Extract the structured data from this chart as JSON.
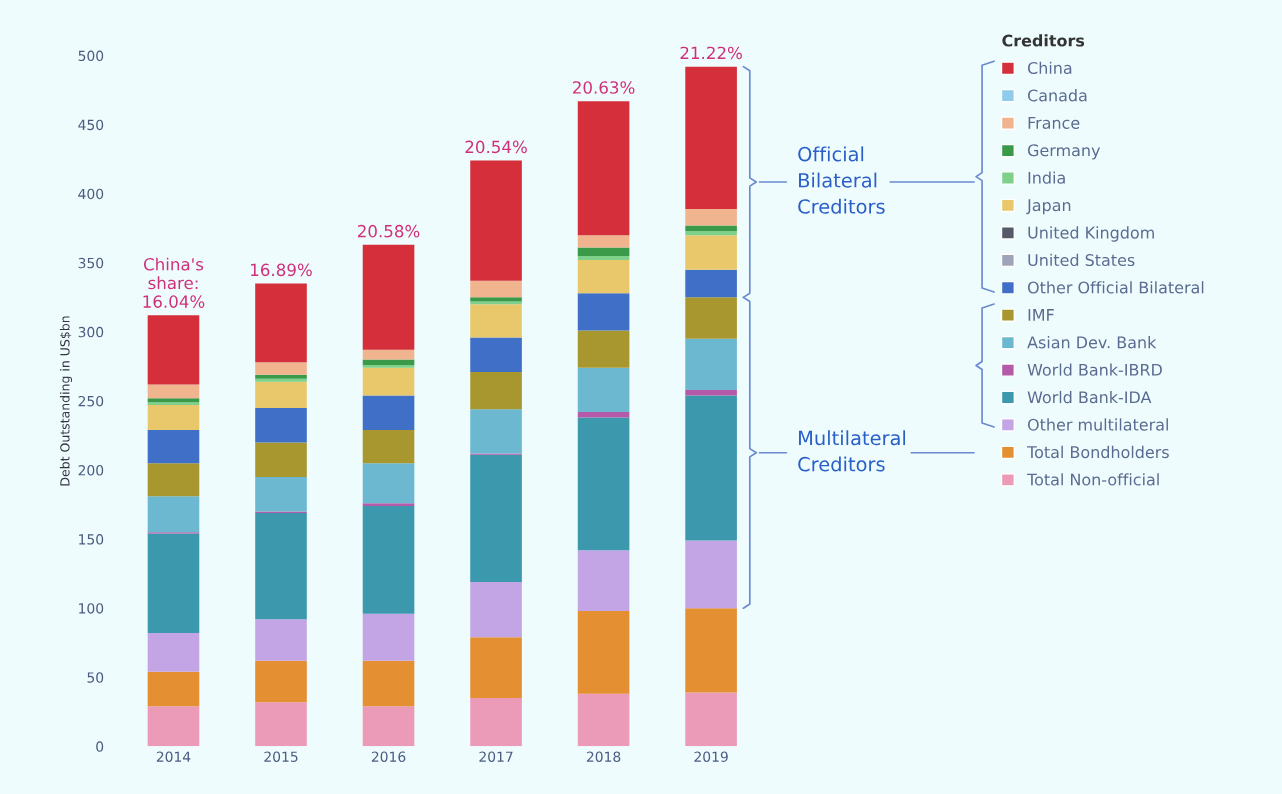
{
  "chart_data": {
    "type": "bar",
    "stacked": true,
    "ylabel": "Debt Outstanding in US$bn",
    "legend_title": "Creditors",
    "legend": "right",
    "categories": [
      "2014",
      "2015",
      "2016",
      "2017",
      "2018",
      "2019"
    ],
    "ylim": [
      0,
      500
    ],
    "yticks": [
      0,
      50,
      100,
      150,
      200,
      250,
      300,
      350,
      400,
      450,
      500
    ],
    "grid": false,
    "series": [
      {
        "name": "Total Non-official",
        "color": "#eb9ab8",
        "values": [
          29,
          32,
          29,
          35,
          38,
          39
        ]
      },
      {
        "name": "Total Bondholders",
        "color": "#e38f32",
        "values": [
          25,
          30,
          33,
          44,
          60,
          61
        ]
      },
      {
        "name": "Other multilateral",
        "color": "#c3a5e6",
        "values": [
          28,
          30,
          34,
          40,
          44,
          49
        ]
      },
      {
        "name": "World Bank-IDA",
        "color": "#3b98ad",
        "values": [
          72,
          77,
          78,
          92,
          96,
          105
        ]
      },
      {
        "name": "World Bank-IBRD",
        "color": "#b45aa8",
        "values": [
          1,
          1,
          2,
          1,
          4,
          4
        ]
      },
      {
        "name": "Asian Dev. Bank",
        "color": "#6bb8d0",
        "values": [
          26,
          25,
          29,
          32,
          32,
          37
        ]
      },
      {
        "name": "IMF",
        "color": "#a8962f",
        "values": [
          24,
          25,
          24,
          27,
          27,
          30
        ]
      },
      {
        "name": "Other Official Bilateral",
        "color": "#3f6fc6",
        "values": [
          24,
          25,
          25,
          25,
          27,
          20
        ]
      },
      {
        "name": "United States",
        "color": "#a0a4b8",
        "values": [
          0,
          0,
          0,
          0,
          0,
          0
        ]
      },
      {
        "name": "United Kingdom",
        "color": "#555a66",
        "values": [
          0,
          0,
          0,
          0,
          0,
          0
        ]
      },
      {
        "name": "Japan",
        "color": "#e8c86a",
        "values": [
          18,
          19,
          20,
          24,
          24,
          25
        ]
      },
      {
        "name": "India",
        "color": "#7fd08a",
        "values": [
          2,
          2,
          2,
          2,
          3,
          3
        ]
      },
      {
        "name": "Germany",
        "color": "#3a9a4a",
        "values": [
          3,
          3,
          4,
          3,
          6,
          4
        ]
      },
      {
        "name": "France",
        "color": "#f0b48f",
        "values": [
          10,
          9,
          7,
          12,
          9,
          12
        ]
      },
      {
        "name": "Canada",
        "color": "#8fcbeb",
        "values": [
          0,
          0,
          0,
          0,
          0,
          0
        ]
      },
      {
        "name": "China",
        "color": "#d42f3a",
        "values": [
          50,
          57,
          76,
          87,
          97,
          103
        ]
      }
    ],
    "annotations": [
      {
        "text": "China's\nshare:\n16.04%",
        "x": "2014",
        "y": 312
      },
      {
        "text": "16.89%",
        "x": "2015",
        "y": 335
      },
      {
        "text": "20.58%",
        "x": "2016",
        "y": 363
      },
      {
        "text": "20.54%",
        "x": "2017",
        "y": 424
      },
      {
        "text": "20.63%",
        "x": "2018",
        "y": 467
      },
      {
        "text": "21.22%",
        "x": "2019",
        "y": 492
      },
      "Official\nBilateral\nCreditors",
      "Multilateral\nCreditors"
    ]
  }
}
